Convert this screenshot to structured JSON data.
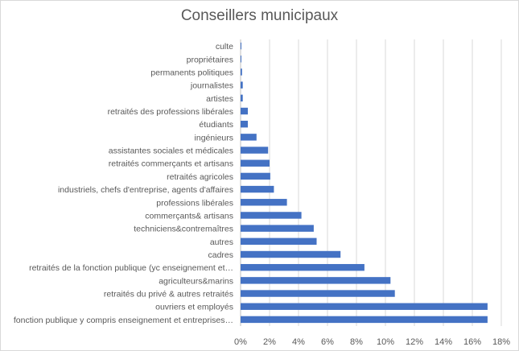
{
  "chart_data": {
    "type": "bar",
    "orientation": "horizontal",
    "title": "Conseillers municipaux",
    "categories": [
      "culte",
      "propriétaires",
      "permanents politiques",
      "journalistes",
      "artistes",
      "retraités des professions libérales",
      "étudiants",
      "ingénieurs",
      "assistantes sociales et médicales",
      "retraités commerçants et artisans",
      "retraités agricoles",
      "industriels, chefs d'entreprise, agents d'affaires",
      "professions libérales",
      "commerçants& artisans",
      "techniciens&contremaîtres",
      "autres",
      "cadres",
      "retraités de la fonction publique (yc enseignement et…",
      "agriculteurs&marins",
      "retraités du privé & autres retraités",
      "ouvriers et employés",
      "fonction publique y compris enseignement et entreprises…"
    ],
    "values": [
      0.0005,
      0.0005,
      0.001,
      0.0015,
      0.0015,
      0.005,
      0.005,
      0.011,
      0.019,
      0.02,
      0.0205,
      0.023,
      0.032,
      0.042,
      0.0505,
      0.0525,
      0.069,
      0.0855,
      0.1035,
      0.1065,
      0.1705,
      0.1705
    ],
    "xlim": [
      0,
      0.18
    ],
    "x_ticks": [
      0,
      0.02,
      0.04,
      0.06,
      0.08,
      0.1,
      0.12,
      0.14,
      0.16,
      0.18
    ],
    "x_tick_labels": [
      "0%",
      "2%",
      "4%",
      "6%",
      "8%",
      "10%",
      "12%",
      "14%",
      "16%",
      "18%"
    ],
    "grid": "vertical",
    "legend": "none",
    "bar_color": "#4472c4"
  }
}
